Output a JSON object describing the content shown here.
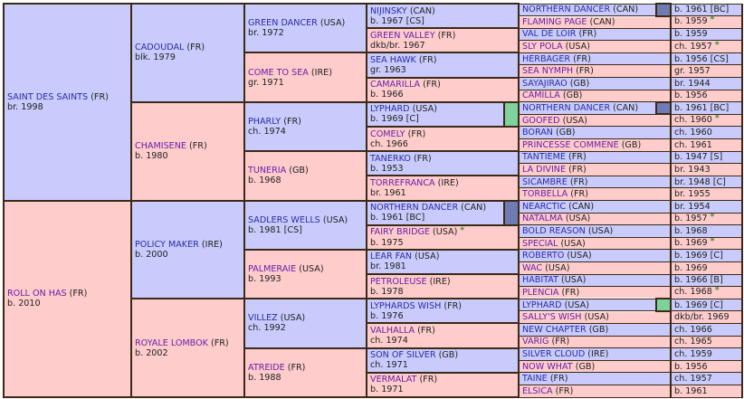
{
  "colors": {
    "male_bg": "#c8cbfb",
    "female_bg": "#fdcccb",
    "border": "#3b2a18",
    "male_link": "#2b2ba6",
    "female_link": "#6a1fa8",
    "marker_lyphard": "#7fd39a",
    "marker_northern_dancer": "#6f7bb3",
    "star": "#2e8b2e"
  },
  "gen1": [
    {
      "name": "SAINT DES SAINTS",
      "country": "(FR)",
      "info": "br. 1998",
      "sex": "m"
    },
    {
      "name": "ROLL ON HAS",
      "country": "(FR)",
      "info": "b. 2010",
      "sex": "f"
    }
  ],
  "gen2": [
    {
      "name": "CADOUDAL",
      "country": "(FR)",
      "info": "blk. 1979",
      "sex": "m"
    },
    {
      "name": "CHAMISENE",
      "country": "(FR)",
      "info": "b. 1980",
      "sex": "f"
    },
    {
      "name": "POLICY MAKER",
      "country": "(IRE)",
      "info": "b. 2000",
      "sex": "m"
    },
    {
      "name": "ROYALE LOMBOK",
      "country": "(FR)",
      "info": "b. 2002",
      "sex": "f"
    }
  ],
  "gen3": [
    {
      "name": "GREEN DANCER",
      "country": "(USA)",
      "info": "br. 1972",
      "sex": "m"
    },
    {
      "name": "COME TO SEA",
      "country": "(IRE)",
      "info": "gr. 1971",
      "sex": "f"
    },
    {
      "name": "PHARLY",
      "country": "(FR)",
      "info": "ch. 1974",
      "sex": "m"
    },
    {
      "name": "TUNERIA",
      "country": "(GB)",
      "info": "b. 1968",
      "sex": "f"
    },
    {
      "name": "SADLERS WELLS",
      "country": "(USA)",
      "info": "b. 1981 [CS]",
      "sex": "m"
    },
    {
      "name": "PALMERAIE",
      "country": "(USA)",
      "info": "b. 1993",
      "sex": "f"
    },
    {
      "name": "VILLEZ",
      "country": "(USA)",
      "info": "ch. 1992",
      "sex": "m"
    },
    {
      "name": "ATREIDE",
      "country": "(FR)",
      "info": "b. 1988",
      "sex": "f"
    }
  ],
  "gen4": [
    {
      "name": "NIJINSKY",
      "country": "(CAN)",
      "info": "b. 1967 [CS]",
      "sex": "m",
      "star": "",
      "marker": ""
    },
    {
      "name": "GREEN VALLEY",
      "country": "(FR)",
      "info": "dkb/br. 1967",
      "sex": "f",
      "star": "",
      "marker": ""
    },
    {
      "name": "SEA HAWK",
      "country": "(FR)",
      "info": "gr. 1963",
      "sex": "m",
      "star": "",
      "marker": ""
    },
    {
      "name": "CAMARILLA",
      "country": "(FR)",
      "info": "b. 1966",
      "sex": "f",
      "star": "",
      "marker": ""
    },
    {
      "name": "LYPHARD",
      "country": "(USA)",
      "info": "b. 1969 [C]",
      "sex": "m",
      "star": "",
      "marker": "green"
    },
    {
      "name": "COMELY",
      "country": "(FR)",
      "info": "ch. 1966",
      "sex": "f",
      "star": "",
      "marker": ""
    },
    {
      "name": "TANERKO",
      "country": "(FR)",
      "info": "b. 1953",
      "sex": "m",
      "star": "",
      "marker": ""
    },
    {
      "name": "TORREFRANCA",
      "country": "(IRE)",
      "info": "br. 1961",
      "sex": "f",
      "star": "",
      "marker": ""
    },
    {
      "name": "NORTHERN DANCER",
      "country": "(CAN)",
      "info": "b. 1961 [BC]",
      "sex": "m",
      "star": "",
      "marker": "slate"
    },
    {
      "name": "FAIRY BRIDGE",
      "country": "(USA)",
      "info": "b. 1975",
      "sex": "f",
      "star": "*",
      "marker": ""
    },
    {
      "name": "LEAR FAN",
      "country": "(USA)",
      "info": "br. 1981",
      "sex": "m",
      "star": "",
      "marker": ""
    },
    {
      "name": "PETROLEUSE",
      "country": "(IRE)",
      "info": "b. 1978",
      "sex": "f",
      "star": "",
      "marker": ""
    },
    {
      "name": "LYPHARDS WISH",
      "country": "(FR)",
      "info": "b. 1976",
      "sex": "m",
      "star": "",
      "marker": ""
    },
    {
      "name": "VALHALLA",
      "country": "(FR)",
      "info": "ch. 1974",
      "sex": "f",
      "star": "",
      "marker": ""
    },
    {
      "name": "SON OF SILVER",
      "country": "(GB)",
      "info": "ch. 1971",
      "sex": "m",
      "star": "",
      "marker": ""
    },
    {
      "name": "VERMALAT",
      "country": "(FR)",
      "info": "b. 1971",
      "sex": "f",
      "star": "",
      "marker": ""
    }
  ],
  "gen5": [
    {
      "name": "NORTHERN DANCER",
      "country": "(CAN)",
      "info": "b. 1961 [BC]",
      "sex": "m",
      "star": "",
      "marker": "slate"
    },
    {
      "name": "FLAMING PAGE",
      "country": "(CAN)",
      "info": "b. 1959",
      "sex": "f",
      "star": "*",
      "marker": ""
    },
    {
      "name": "VAL DE LOIR",
      "country": "(FR)",
      "info": "b. 1959",
      "sex": "m",
      "star": "",
      "marker": ""
    },
    {
      "name": "SLY POLA",
      "country": "(USA)",
      "info": "ch. 1957",
      "sex": "f",
      "star": "*",
      "marker": ""
    },
    {
      "name": "HERBAGER",
      "country": "(FR)",
      "info": "b. 1956 [CS]",
      "sex": "m",
      "star": "",
      "marker": ""
    },
    {
      "name": "SEA NYMPH",
      "country": "(FR)",
      "info": "gr. 1957",
      "sex": "f",
      "star": "",
      "marker": ""
    },
    {
      "name": "SAYAJIRAO",
      "country": "(GB)",
      "info": "br. 1944",
      "sex": "m",
      "star": "",
      "marker": ""
    },
    {
      "name": "CAMILLA",
      "country": "(GB)",
      "info": "b. 1956",
      "sex": "f",
      "star": "",
      "marker": ""
    },
    {
      "name": "NORTHERN DANCER",
      "country": "(CAN)",
      "info": "b. 1961 [BC]",
      "sex": "m",
      "star": "",
      "marker": "slate"
    },
    {
      "name": "GOOFED",
      "country": "(USA)",
      "info": "ch. 1960",
      "sex": "f",
      "star": "*",
      "marker": ""
    },
    {
      "name": "BORAN",
      "country": "(GB)",
      "info": "ch. 1960",
      "sex": "m",
      "star": "",
      "marker": ""
    },
    {
      "name": "PRINCESSE COMMENE",
      "country": "(GB)",
      "info": "ch. 1961",
      "sex": "f",
      "star": "",
      "marker": ""
    },
    {
      "name": "TANTIEME",
      "country": "(FR)",
      "info": "b. 1947 [S]",
      "sex": "m",
      "star": "",
      "marker": ""
    },
    {
      "name": "LA DIVINE",
      "country": "(FR)",
      "info": "br. 1943",
      "sex": "f",
      "star": "",
      "marker": ""
    },
    {
      "name": "SICAMBRE",
      "country": "(FR)",
      "info": "br. 1948 [C]",
      "sex": "m",
      "star": "",
      "marker": ""
    },
    {
      "name": "TORBELLA",
      "country": "(FR)",
      "info": "br. 1955",
      "sex": "f",
      "star": "",
      "marker": ""
    },
    {
      "name": "NEARCTIC",
      "country": "(CAN)",
      "info": "br. 1954",
      "sex": "m",
      "star": "",
      "marker": ""
    },
    {
      "name": "NATALMA",
      "country": "(USA)",
      "info": "b. 1957",
      "sex": "f",
      "star": "*",
      "marker": ""
    },
    {
      "name": "BOLD REASON",
      "country": "(USA)",
      "info": "b. 1968",
      "sex": "m",
      "star": "",
      "marker": ""
    },
    {
      "name": "SPECIAL",
      "country": "(USA)",
      "info": "b. 1969",
      "sex": "f",
      "star": "*",
      "marker": ""
    },
    {
      "name": "ROBERTO",
      "country": "(USA)",
      "info": "b. 1969 [C]",
      "sex": "m",
      "star": "",
      "marker": ""
    },
    {
      "name": "WAC",
      "country": "(USA)",
      "info": "b. 1969",
      "sex": "f",
      "star": "",
      "marker": ""
    },
    {
      "name": "HABITAT",
      "country": "(USA)",
      "info": "b. 1966 [B]",
      "sex": "m",
      "star": "",
      "marker": ""
    },
    {
      "name": "PLENCIA",
      "country": "(FR)",
      "info": "ch. 1968",
      "sex": "f",
      "star": "*",
      "marker": ""
    },
    {
      "name": "LYPHARD",
      "country": "(USA)",
      "info": "b. 1969 [C]",
      "sex": "m",
      "star": "",
      "marker": "green"
    },
    {
      "name": "SALLY'S WISH",
      "country": "(USA)",
      "info": "dkb/br. 1969",
      "sex": "f",
      "star": "",
      "marker": ""
    },
    {
      "name": "NEW CHAPTER",
      "country": "(GB)",
      "info": "ch. 1966",
      "sex": "m",
      "star": "",
      "marker": ""
    },
    {
      "name": "VARIG",
      "country": "(FR)",
      "info": "ch. 1965",
      "sex": "f",
      "star": "",
      "marker": ""
    },
    {
      "name": "SILVER CLOUD",
      "country": "(IRE)",
      "info": "ch. 1959",
      "sex": "m",
      "star": "",
      "marker": ""
    },
    {
      "name": "NOW WHAT",
      "country": "(GB)",
      "info": "b. 1956",
      "sex": "f",
      "star": "",
      "marker": ""
    },
    {
      "name": "TAINE",
      "country": "(FR)",
      "info": "ch. 1957",
      "sex": "m",
      "star": "",
      "marker": ""
    },
    {
      "name": "ELSICA",
      "country": "(FR)",
      "info": "b. 1961",
      "sex": "f",
      "star": "",
      "marker": ""
    }
  ]
}
